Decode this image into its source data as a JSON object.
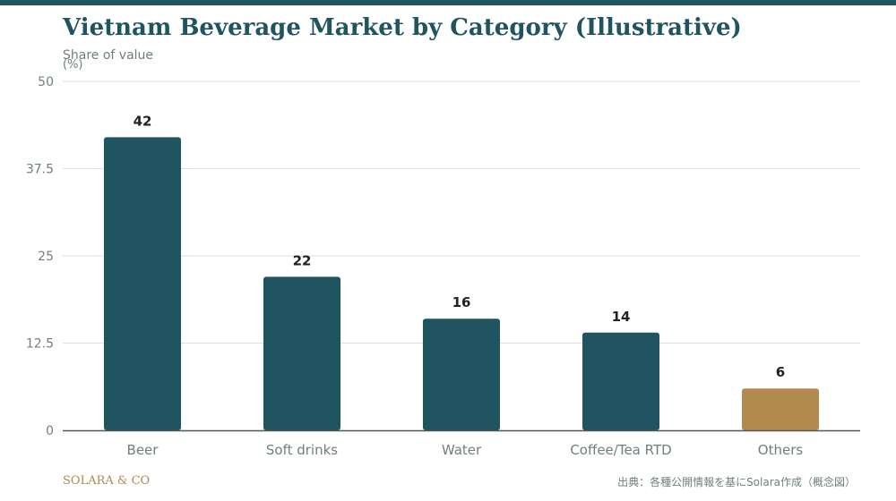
{
  "header": {
    "title": "Vietnam Beverage Market by Category (Illustrative)",
    "subtitle": "Share of value",
    "unit": "(%)"
  },
  "colors": {
    "accent": "#1f5460",
    "highlight": "#b08a4f",
    "grid": "#dedede",
    "axis": "#555555",
    "label": "#6f7f7f",
    "value_label": "#222222"
  },
  "chart_data": {
    "type": "bar",
    "title": "Vietnam Beverage Market by Category (Illustrative)",
    "subtitle": "Share of value",
    "ylabel": "(%)",
    "xlabel": "",
    "categories": [
      "Beer",
      "Soft drinks",
      "Water",
      "Coffee/Tea RTD",
      "Others"
    ],
    "values": [
      42,
      22,
      16,
      14,
      6
    ],
    "data_labels": [
      "42",
      "22",
      "16",
      "14",
      "6"
    ],
    "highlighted_category": "Others",
    "ylim": [
      0,
      50
    ],
    "yticks": [
      0,
      12.5,
      25,
      37.5,
      50
    ],
    "ytick_labels": [
      "0",
      "12.5",
      "25",
      "37.5",
      "50"
    ],
    "grid": true,
    "legend": "none"
  },
  "footer": {
    "brand": "SOLARA & CO",
    "source": "出典：各種公開情報を基にSolara作成（概念図）"
  }
}
